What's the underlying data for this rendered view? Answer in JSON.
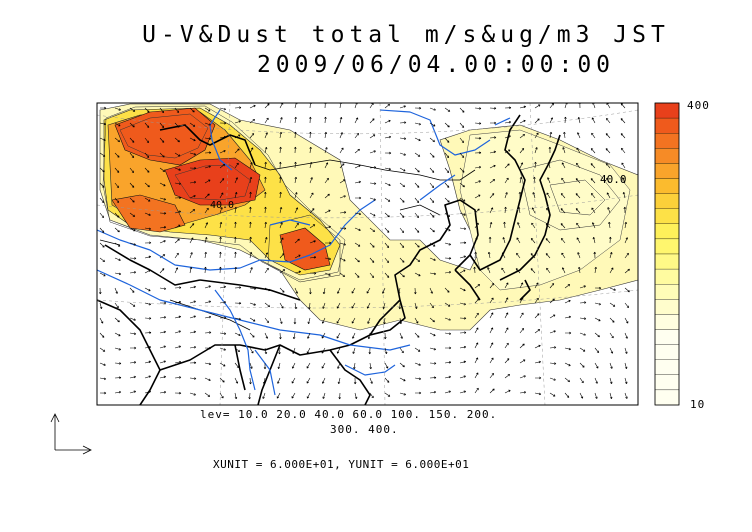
{
  "title": {
    "line1": "U-V&Dust total m/s&ug/m3 JST",
    "line2": "2009/06/04.00:00:00"
  },
  "levels": {
    "line1": "lev= 10.0 20.0 40.0 60.0 100. 150. 200.",
    "line2": "300. 400."
  },
  "units": "XUNIT = 6.000E+01, YUNIT = 6.000E+01",
  "colorbar": {
    "max_label": "400",
    "min_label": "10",
    "colors": [
      "#e8401b",
      "#ef5a1c",
      "#f37321",
      "#f68b26",
      "#f9a42b",
      "#fbbb2e",
      "#fcd03a",
      "#fde147",
      "#fef05a",
      "#fff66e",
      "#fff987",
      "#fffba0",
      "#fffcb8",
      "#fffdcc",
      "#fffee0"
    ]
  },
  "contour_labels": [
    "40.0",
    "40.0"
  ],
  "colors": {
    "coast": "#000000",
    "river": "#1e64dc",
    "high_dust": "#ef5a1c",
    "mid_dust": "#fcd03a",
    "low_dust": "#fff9b0"
  }
}
